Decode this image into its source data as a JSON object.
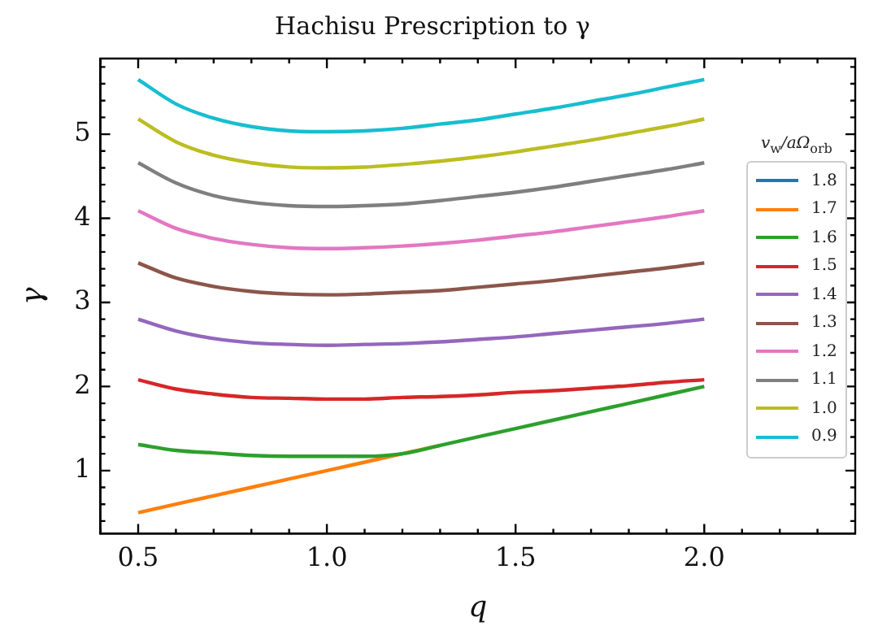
{
  "chart_data": {
    "type": "line",
    "title": "Hachisu Prescription to γ",
    "xlabel": "q",
    "ylabel": "γ",
    "legend_title": "v$_{w}$/aΩ$_{orb}$",
    "legend": "right",
    "grid": false,
    "line_style": "solid",
    "xlim": [
      0.4,
      2.4
    ],
    "ylim": [
      0.25,
      5.9
    ],
    "xticks": [
      {
        "value": 0.4,
        "label": null
      },
      0.5,
      {
        "value": 0.6,
        "label": null
      },
      {
        "value": 0.7,
        "label": null
      },
      {
        "value": 0.8,
        "label": null
      },
      {
        "value": 0.9,
        "label": null
      },
      {
        "value": 1.0,
        "label": "1.0"
      },
      {
        "value": 1.1,
        "label": null
      },
      {
        "value": 1.2,
        "label": null
      },
      {
        "value": 1.3,
        "label": null
      },
      {
        "value": 1.4,
        "label": null
      },
      1.5,
      {
        "value": 1.6,
        "label": null
      },
      {
        "value": 1.7,
        "label": null
      },
      {
        "value": 1.8,
        "label": null
      },
      {
        "value": 1.9,
        "label": null
      },
      {
        "value": 2.0,
        "label": "2.0"
      },
      {
        "value": 2.1,
        "label": null
      },
      {
        "value": 2.2,
        "label": null
      },
      {
        "value": 2.3,
        "label": null
      }
    ],
    "yticks": [
      {
        "value": 0.4,
        "label": null
      },
      {
        "value": 0.6,
        "label": null
      },
      {
        "value": 0.8,
        "label": null
      },
      1,
      {
        "value": 1.2,
        "label": null
      },
      {
        "value": 1.4,
        "label": null
      },
      {
        "value": 1.6,
        "label": null
      },
      {
        "value": 1.8,
        "label": null
      },
      2,
      {
        "value": 2.2,
        "label": null
      },
      {
        "value": 2.4,
        "label": null
      },
      {
        "value": 2.6,
        "label": null
      },
      {
        "value": 2.8,
        "label": null
      },
      3,
      {
        "value": 3.2,
        "label": null
      },
      {
        "value": 3.4,
        "label": null
      },
      {
        "value": 3.6,
        "label": null
      },
      {
        "value": 3.8,
        "label": null
      },
      4,
      {
        "value": 4.2,
        "label": null
      },
      {
        "value": 4.4,
        "label": null
      },
      {
        "value": 4.6,
        "label": null
      },
      {
        "value": 4.8,
        "label": null
      },
      5,
      {
        "value": 5.2,
        "label": null
      },
      {
        "value": 5.4,
        "label": null
      },
      {
        "value": 5.6,
        "label": null
      },
      {
        "value": 5.8,
        "label": null
      }
    ],
    "x": [
      0.5,
      0.6,
      0.7,
      0.8,
      0.9,
      1.0,
      1.1,
      1.2,
      1.3,
      1.4,
      1.5,
      1.6,
      1.7,
      1.8,
      1.9,
      2.0
    ],
    "series": [
      {
        "name": "1.8",
        "color": "#1f77b4",
        "values": [
          null,
          null,
          null,
          null,
          null,
          null,
          null,
          null,
          null,
          null,
          null,
          null,
          null,
          null,
          null,
          null
        ]
      },
      {
        "name": "1.7",
        "color": "#ff7f0e",
        "values": [
          0.5,
          0.6,
          0.7,
          0.8,
          0.9,
          1.0,
          1.1,
          1.2,
          1.3,
          null,
          null,
          null,
          null,
          null,
          null,
          null
        ]
      },
      {
        "name": "1.6",
        "color": "#2ca02c",
        "values": [
          1.31,
          1.24,
          1.21,
          1.18,
          1.17,
          1.17,
          1.17,
          1.2,
          1.3,
          1.4,
          1.5,
          1.6,
          1.7,
          1.8,
          1.9,
          2.0
        ]
      },
      {
        "name": "1.5",
        "color": "#d62728",
        "values": [
          2.08,
          1.97,
          1.91,
          1.87,
          1.86,
          1.85,
          1.85,
          1.87,
          1.88,
          1.9,
          1.93,
          1.95,
          1.98,
          2.01,
          2.05,
          2.08
        ]
      },
      {
        "name": "1.4",
        "color": "#9467bd",
        "values": [
          2.8,
          2.66,
          2.57,
          2.52,
          2.5,
          2.49,
          2.5,
          2.51,
          2.53,
          2.56,
          2.59,
          2.63,
          2.67,
          2.71,
          2.75,
          2.8
        ]
      },
      {
        "name": "1.3",
        "color": "#8c564b",
        "values": [
          3.47,
          3.29,
          3.19,
          3.13,
          3.1,
          3.09,
          3.1,
          3.12,
          3.14,
          3.18,
          3.22,
          3.26,
          3.31,
          3.36,
          3.41,
          3.47
        ]
      },
      {
        "name": "1.2",
        "color": "#e377c2",
        "values": [
          4.09,
          3.88,
          3.76,
          3.69,
          3.65,
          3.64,
          3.65,
          3.67,
          3.7,
          3.74,
          3.79,
          3.84,
          3.9,
          3.96,
          4.02,
          4.09
        ]
      },
      {
        "name": "1.1",
        "color": "#7f7f7f",
        "values": [
          4.66,
          4.42,
          4.27,
          4.19,
          4.15,
          4.14,
          4.15,
          4.17,
          4.21,
          4.26,
          4.31,
          4.37,
          4.44,
          4.51,
          4.58,
          4.66
        ]
      },
      {
        "name": "1.0",
        "color": "#bcbd22",
        "values": [
          5.18,
          4.91,
          4.75,
          4.66,
          4.61,
          4.6,
          4.61,
          4.64,
          4.68,
          4.73,
          4.79,
          4.86,
          4.93,
          5.01,
          5.09,
          5.18
        ]
      },
      {
        "name": "0.9",
        "color": "#17becf",
        "values": [
          5.65,
          5.36,
          5.19,
          5.09,
          5.04,
          5.03,
          5.04,
          5.07,
          5.12,
          5.17,
          5.24,
          5.31,
          5.39,
          5.47,
          5.56,
          5.65
        ]
      }
    ]
  }
}
